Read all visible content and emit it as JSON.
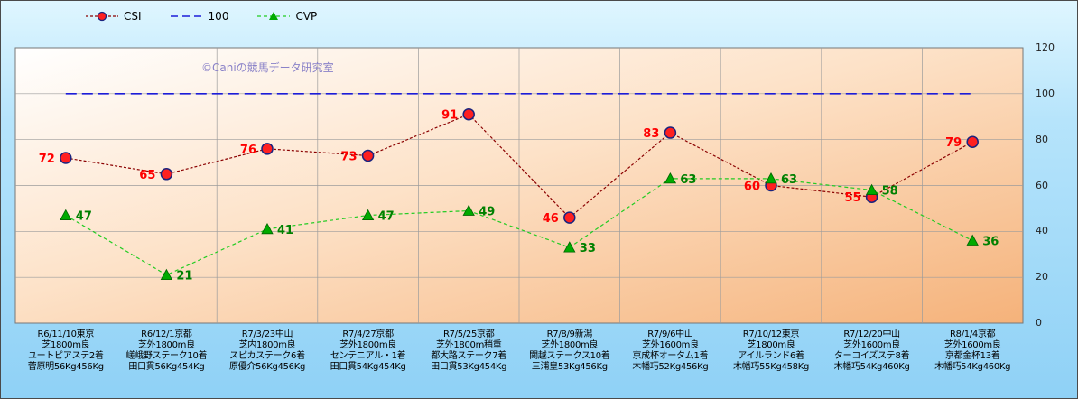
{
  "chart_data": {
    "type": "line",
    "categories": [
      [
        "R6/11/10東京",
        "芝1800m良",
        "ユートピアステ2着",
        "菅原明56Kg456Kg"
      ],
      [
        "R6/12/1京都",
        "芝外1800m良",
        "嵯峨野ステーク10着",
        "田口貫56Kg454Kg"
      ],
      [
        "R7/3/23中山",
        "芝内1800m良",
        "スピカステーク6着",
        "原優介56Kg456Kg"
      ],
      [
        "R7/4/27京都",
        "芝外1800m良",
        "センテニアル・1着",
        "田口貫54Kg454Kg"
      ],
      [
        "R7/5/25京都",
        "芝外1800m稍重",
        "都大路ステーク7着",
        "田口貫53Kg454Kg"
      ],
      [
        "R7/8/9新潟",
        "芝外1800m良",
        "関越ステークス10着",
        "三浦皇53Kg456Kg"
      ],
      [
        "R7/9/6中山",
        "芝外1600m良",
        "京成杯オータム1着",
        "木幡巧52Kg456Kg"
      ],
      [
        "R7/10/12東京",
        "芝1800m良",
        "アイルランド6着",
        "木幡巧55Kg458Kg"
      ],
      [
        "R7/12/20中山",
        "芝外1600m良",
        "ターコイズステ8着",
        "木幡巧54Kg460Kg"
      ],
      [
        "R8/1/4京都",
        "芝外1600m良",
        "京都金杯13着",
        "木幡巧54Kg460Kg"
      ]
    ],
    "series": [
      {
        "name": "CSI",
        "values": [
          72,
          65,
          76,
          73,
          91,
          46,
          83,
          60,
          55,
          79
        ],
        "color": "#8b0000",
        "marker_color": "#ff2020",
        "label_color": "#ff0000",
        "marker": "circle",
        "dash": "dotted"
      },
      {
        "name": "100",
        "values": [
          100,
          100,
          100,
          100,
          100,
          100,
          100,
          100,
          100,
          100
        ],
        "color": "#1c1cd8",
        "marker": "none",
        "dash": "dashed"
      },
      {
        "name": "CVP",
        "values": [
          47,
          21,
          41,
          47,
          49,
          33,
          63,
          63,
          58,
          36
        ],
        "color": "#22cc22",
        "marker_color": "#00aa00",
        "label_color": "#008000",
        "marker": "triangle",
        "dash": "dashed"
      }
    ],
    "ylim": [
      0,
      120
    ],
    "yticks": [
      "0",
      "20",
      "40",
      "60",
      "80",
      "100",
      "120"
    ],
    "grid": true,
    "legend_position": "top-left",
    "watermark": "©Caniの競馬データ研究室"
  }
}
